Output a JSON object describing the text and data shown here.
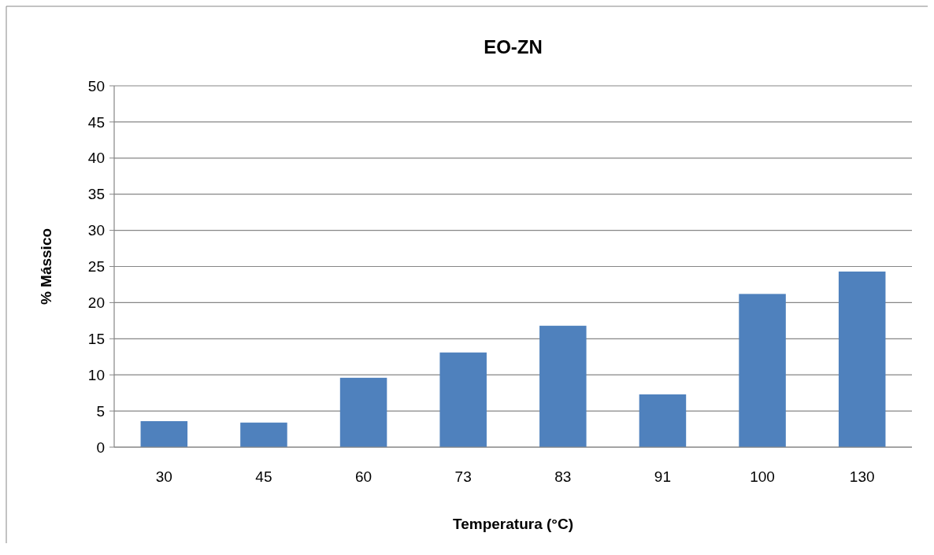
{
  "chart_data": {
    "type": "bar",
    "title": "EO-ZN",
    "xlabel": "Temperatura (°C)",
    "ylabel": "% Mássico",
    "categories": [
      "30",
      "45",
      "60",
      "73",
      "83",
      "91",
      "100",
      "130"
    ],
    "values": [
      3.6,
      3.4,
      9.6,
      13.1,
      16.8,
      7.3,
      21.2,
      24.3
    ],
    "color": "#4f81bd",
    "ylim": [
      0,
      50
    ],
    "yticks": [
      0,
      5,
      10,
      15,
      20,
      25,
      30,
      35,
      40,
      45,
      50
    ],
    "grid": "y"
  }
}
